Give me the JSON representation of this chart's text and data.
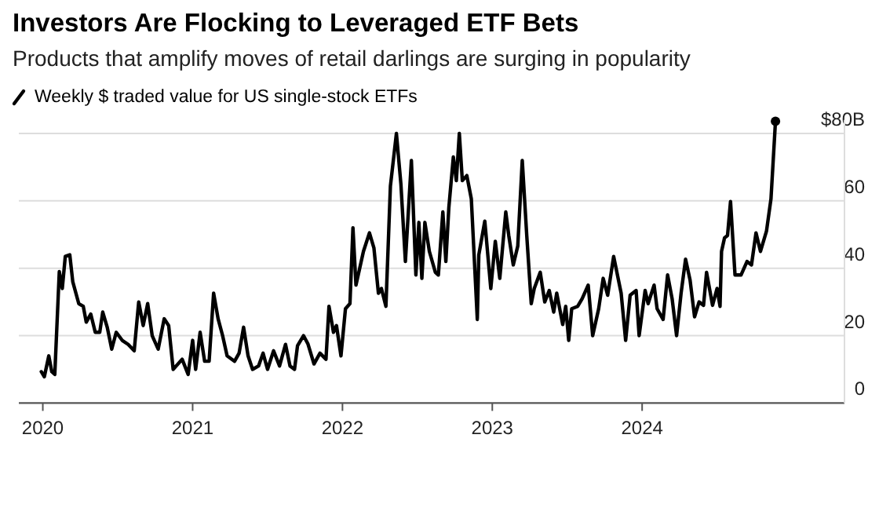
{
  "chart_data": {
    "type": "line",
    "title": "Investors Are Flocking to Leveraged ETF Bets",
    "subtitle": "Products that amplify moves of retail darlings are surging in popularity",
    "x": [
      2019.99,
      2020.01,
      2020.04,
      2020.06,
      2020.08,
      2020.11,
      2020.13,
      2020.15,
      2020.18,
      2020.2,
      2020.24,
      2020.27,
      2020.29,
      2020.32,
      2020.35,
      2020.38,
      2020.4,
      2020.43,
      2020.46,
      2020.49,
      2020.53,
      2020.57,
      2020.61,
      2020.64,
      2020.67,
      2020.7,
      2020.73,
      2020.77,
      2020.81,
      2020.84,
      2020.87,
      2020.93,
      2020.97,
      2021.0,
      2021.02,
      2021.05,
      2021.08,
      2021.11,
      2021.14,
      2021.17,
      2021.2,
      2021.23,
      2021.28,
      2021.31,
      2021.34,
      2021.37,
      2021.4,
      2021.44,
      2021.47,
      2021.5,
      2021.54,
      2021.58,
      2021.62,
      2021.65,
      2021.68,
      2021.7,
      2021.74,
      2021.77,
      2021.81,
      2021.85,
      2021.89,
      2021.91,
      2021.94,
      2021.96,
      2021.99,
      2022.02,
      2022.05,
      2022.07,
      2022.09,
      2022.14,
      2022.18,
      2022.21,
      2022.24,
      2022.26,
      2022.29,
      2022.32,
      2022.36,
      2022.39,
      2022.42,
      2022.46,
      2022.49,
      2022.51,
      2022.53,
      2022.55,
      2022.58,
      2022.62,
      2022.64,
      2022.67,
      2022.69,
      2022.71,
      2022.74,
      2022.76,
      2022.78,
      2022.8,
      2022.83,
      2022.86,
      2022.9,
      2022.91,
      2022.95,
      2022.99,
      2023.02,
      2023.05,
      2023.09,
      2023.11,
      2023.14,
      2023.17,
      2023.2,
      2023.23,
      2023.26,
      2023.28,
      2023.32,
      2023.35,
      2023.38,
      2023.41,
      2023.43,
      2023.47,
      2023.49,
      2023.51,
      2023.53,
      2023.57,
      2023.6,
      2023.64,
      2023.67,
      2023.71,
      2023.74,
      2023.77,
      2023.81,
      2023.86,
      2023.89,
      2023.92,
      2023.96,
      2023.98,
      2024.02,
      2024.04,
      2024.08,
      2024.1,
      2024.14,
      2024.17,
      2024.2,
      2024.23,
      2024.26,
      2024.29,
      2024.32,
      2024.35,
      2024.38,
      2024.41,
      2024.43,
      2024.47,
      2024.5,
      2024.52,
      2024.53,
      2024.55,
      2024.57,
      2024.59,
      2024.62,
      2024.66,
      2024.7,
      2024.73,
      2024.76,
      2024.79,
      2024.83,
      2024.86,
      2024.89
    ],
    "series": [
      {
        "name": "Weekly $ traded value for US single-stock ETFs",
        "color": "#000000",
        "values": [
          9.3,
          7.8,
          14,
          9.3,
          8.5,
          39,
          34,
          43.5,
          44,
          36,
          29.5,
          28.7,
          24,
          26.4,
          21,
          21,
          27,
          22.5,
          16,
          21,
          18.6,
          17.4,
          15.5,
          30,
          23,
          29.5,
          20,
          16,
          25,
          23,
          10,
          13,
          8.5,
          18.6,
          10,
          21,
          12.4,
          12.4,
          32.6,
          25,
          20,
          14,
          12.4,
          14.8,
          22.5,
          14,
          10,
          11,
          14.8,
          10,
          15.5,
          11,
          17.4,
          11,
          10,
          17,
          20,
          17.5,
          11.6,
          14.8,
          13,
          28.7,
          21,
          23,
          14,
          28,
          29.5,
          52,
          35,
          45,
          50.5,
          46,
          32.6,
          34,
          28.7,
          64.4,
          80,
          65,
          42,
          72,
          38,
          53.6,
          37,
          53.6,
          45,
          38.8,
          38,
          56.7,
          42,
          58,
          73,
          66,
          80,
          66,
          67.5,
          60.6,
          24.8,
          44,
          54,
          34,
          48,
          37,
          56.7,
          49.7,
          41,
          46.6,
          72,
          49.7,
          29.5,
          34,
          38.8,
          30,
          33.4,
          27,
          32.6,
          23.3,
          28.7,
          18.6,
          28,
          28.7,
          31,
          35,
          20,
          28,
          37,
          32,
          43.5,
          32.6,
          18.6,
          32,
          33.4,
          20,
          33.4,
          29.5,
          35,
          28,
          24.8,
          38,
          31,
          20,
          32.6,
          42.7,
          36.5,
          25.6,
          30,
          29,
          38.8,
          29,
          34,
          28.7,
          45,
          49,
          49.7,
          59.8,
          38,
          38,
          42,
          41,
          50.5,
          45,
          51,
          60.6,
          83.6
        ]
      }
    ],
    "xlim": [
      2019.84,
      2025.34
    ],
    "xticks": [
      2020,
      2021,
      2022,
      2023,
      2024
    ],
    "ylim": [
      0,
      84
    ],
    "yticks": [
      0,
      20,
      40,
      60,
      {
        "value": 80,
        "label": "$80B"
      }
    ],
    "grid": "y",
    "legend": "top left",
    "marker": "none",
    "line_style": "solid"
  }
}
